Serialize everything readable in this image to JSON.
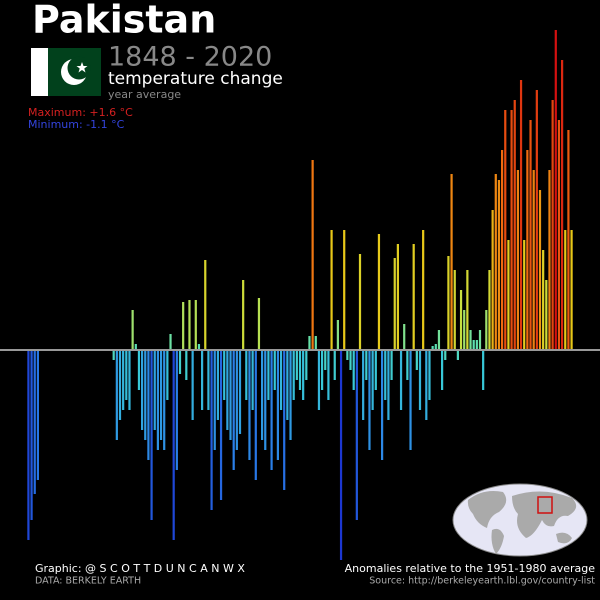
{
  "chart_data": {
    "type": "bar",
    "title": "Pakistan",
    "subtitle": "1848 - 2020",
    "label": "temperature change",
    "period": "year average",
    "maximum": "Maximum: +1.6 °C",
    "minimum": "Minimum: -1.1 °C",
    "credit": "Graphic: @ S C O T T D U N C A N W X",
    "data_source": "DATA: BERKELY EARTH",
    "note": "Anomalies relative to the 1951-1980 average",
    "source": "Source: http://berkeleyearth.lbl.gov/country-list",
    "x": [
      1848,
      1849,
      1850,
      1851,
      1852,
      1853,
      1854,
      1855,
      1856,
      1857,
      1858,
      1859,
      1860,
      1861,
      1862,
      1863,
      1864,
      1865,
      1866,
      1867,
      1868,
      1869,
      1870,
      1871,
      1872,
      1873,
      1874,
      1875,
      1876,
      1877,
      1878,
      1879,
      1880,
      1881,
      1882,
      1883,
      1884,
      1885,
      1886,
      1887,
      1888,
      1889,
      1890,
      1891,
      1892,
      1893,
      1894,
      1895,
      1896,
      1897,
      1898,
      1899,
      1900,
      1901,
      1902,
      1903,
      1904,
      1905,
      1906,
      1907,
      1908,
      1909,
      1910,
      1911,
      1912,
      1913,
      1914,
      1915,
      1916,
      1917,
      1918,
      1919,
      1920,
      1921,
      1922,
      1923,
      1924,
      1925,
      1926,
      1927,
      1928,
      1929,
      1930,
      1931,
      1932,
      1933,
      1934,
      1935,
      1936,
      1937,
      1938,
      1939,
      1940,
      1941,
      1942,
      1943,
      1944,
      1945,
      1946,
      1947,
      1948,
      1949,
      1950,
      1951,
      1952,
      1953,
      1954,
      1955,
      1956,
      1957,
      1958,
      1959,
      1960,
      1961,
      1962,
      1963,
      1964,
      1965,
      1966,
      1967,
      1968,
      1969,
      1970,
      1971,
      1972,
      1973,
      1974,
      1975,
      1976,
      1977,
      1978,
      1979,
      1980,
      1981,
      1982,
      1983,
      1984,
      1985,
      1986,
      1987,
      1988,
      1989,
      1990,
      1991,
      1992,
      1993,
      1994,
      1995,
      1996,
      1997,
      1998,
      1999,
      2000,
      2001,
      2002,
      2003,
      2004,
      2005,
      2006,
      2007,
      2008,
      2009,
      2010,
      2011,
      2012,
      2013,
      2014,
      2015,
      2016,
      2017,
      2018,
      2019,
      2020
    ],
    "values": [
      -0.95,
      -0.85,
      -0.72,
      -0.65,
      null,
      null,
      null,
      null,
      null,
      null,
      null,
      null,
      null,
      null,
      null,
      null,
      null,
      null,
      null,
      null,
      null,
      null,
      null,
      null,
      null,
      null,
      null,
      -0.05,
      -0.45,
      -0.35,
      -0.3,
      -0.25,
      -0.3,
      0.2,
      0.03,
      -0.2,
      -0.4,
      -0.45,
      -0.55,
      -0.85,
      -0.4,
      -0.5,
      -0.45,
      -0.5,
      -0.25,
      0.08,
      -0.95,
      -0.6,
      -0.12,
      0.24,
      -0.15,
      0.25,
      -0.35,
      0.25,
      0.03,
      -0.3,
      0.45,
      -0.3,
      -0.8,
      -0.5,
      -0.35,
      -0.75,
      -0.25,
      -0.4,
      -0.45,
      -0.6,
      -0.5,
      -0.42,
      0.35,
      -0.25,
      -0.55,
      -0.3,
      -0.65,
      0.26,
      -0.45,
      -0.5,
      -0.25,
      -0.6,
      -0.2,
      -0.55,
      -0.3,
      -0.7,
      -0.35,
      -0.45,
      -0.25,
      -0.15,
      -0.2,
      -0.25,
      -0.15,
      0.07,
      0.95,
      0.07,
      -0.3,
      -0.2,
      -0.1,
      -0.25,
      0.6,
      -0.15,
      0.15,
      -1.05,
      0.6,
      -0.05,
      -0.1,
      -0.2,
      -0.85,
      0.48,
      -0.35,
      -0.15,
      -0.5,
      -0.3,
      -0.2,
      0.58,
      -0.55,
      -0.25,
      -0.35,
      -0.15,
      0.46,
      0.53,
      -0.3,
      0.13,
      -0.15,
      -0.5,
      0.53,
      -0.1,
      -0.3,
      0.6,
      -0.35,
      -0.25,
      0.02,
      0.03,
      0.1,
      -0.2,
      -0.05,
      0.47,
      0.88,
      0.4,
      -0.05,
      0.3,
      0.2,
      0.4,
      0.1,
      0.05,
      0.05,
      0.1,
      -0.2,
      0.2,
      0.4,
      0.7,
      0.88,
      0.85,
      1.0,
      1.2,
      0.55,
      1.2,
      1.25,
      0.9,
      1.35,
      0.55,
      1.0,
      1.15,
      0.9,
      1.3,
      0.8,
      0.5,
      0.35,
      0.9,
      1.25,
      1.6,
      1.15,
      1.45,
      0.6,
      1.1,
      0.6
    ],
    "colorscale": [
      [
        -1.1,
        "#1a2fd0"
      ],
      [
        -0.6,
        "#2a7fe8"
      ],
      [
        -0.2,
        "#38c8d8"
      ],
      [
        0.05,
        "#5ee0b0"
      ],
      [
        0.3,
        "#c8e040"
      ],
      [
        0.6,
        "#e8c818"
      ],
      [
        1.0,
        "#f06a10"
      ],
      [
        1.6,
        "#d41010"
      ]
    ],
    "xlim": [
      1839,
      2029
    ],
    "ylim": [
      -1.25,
      1.75
    ]
  }
}
